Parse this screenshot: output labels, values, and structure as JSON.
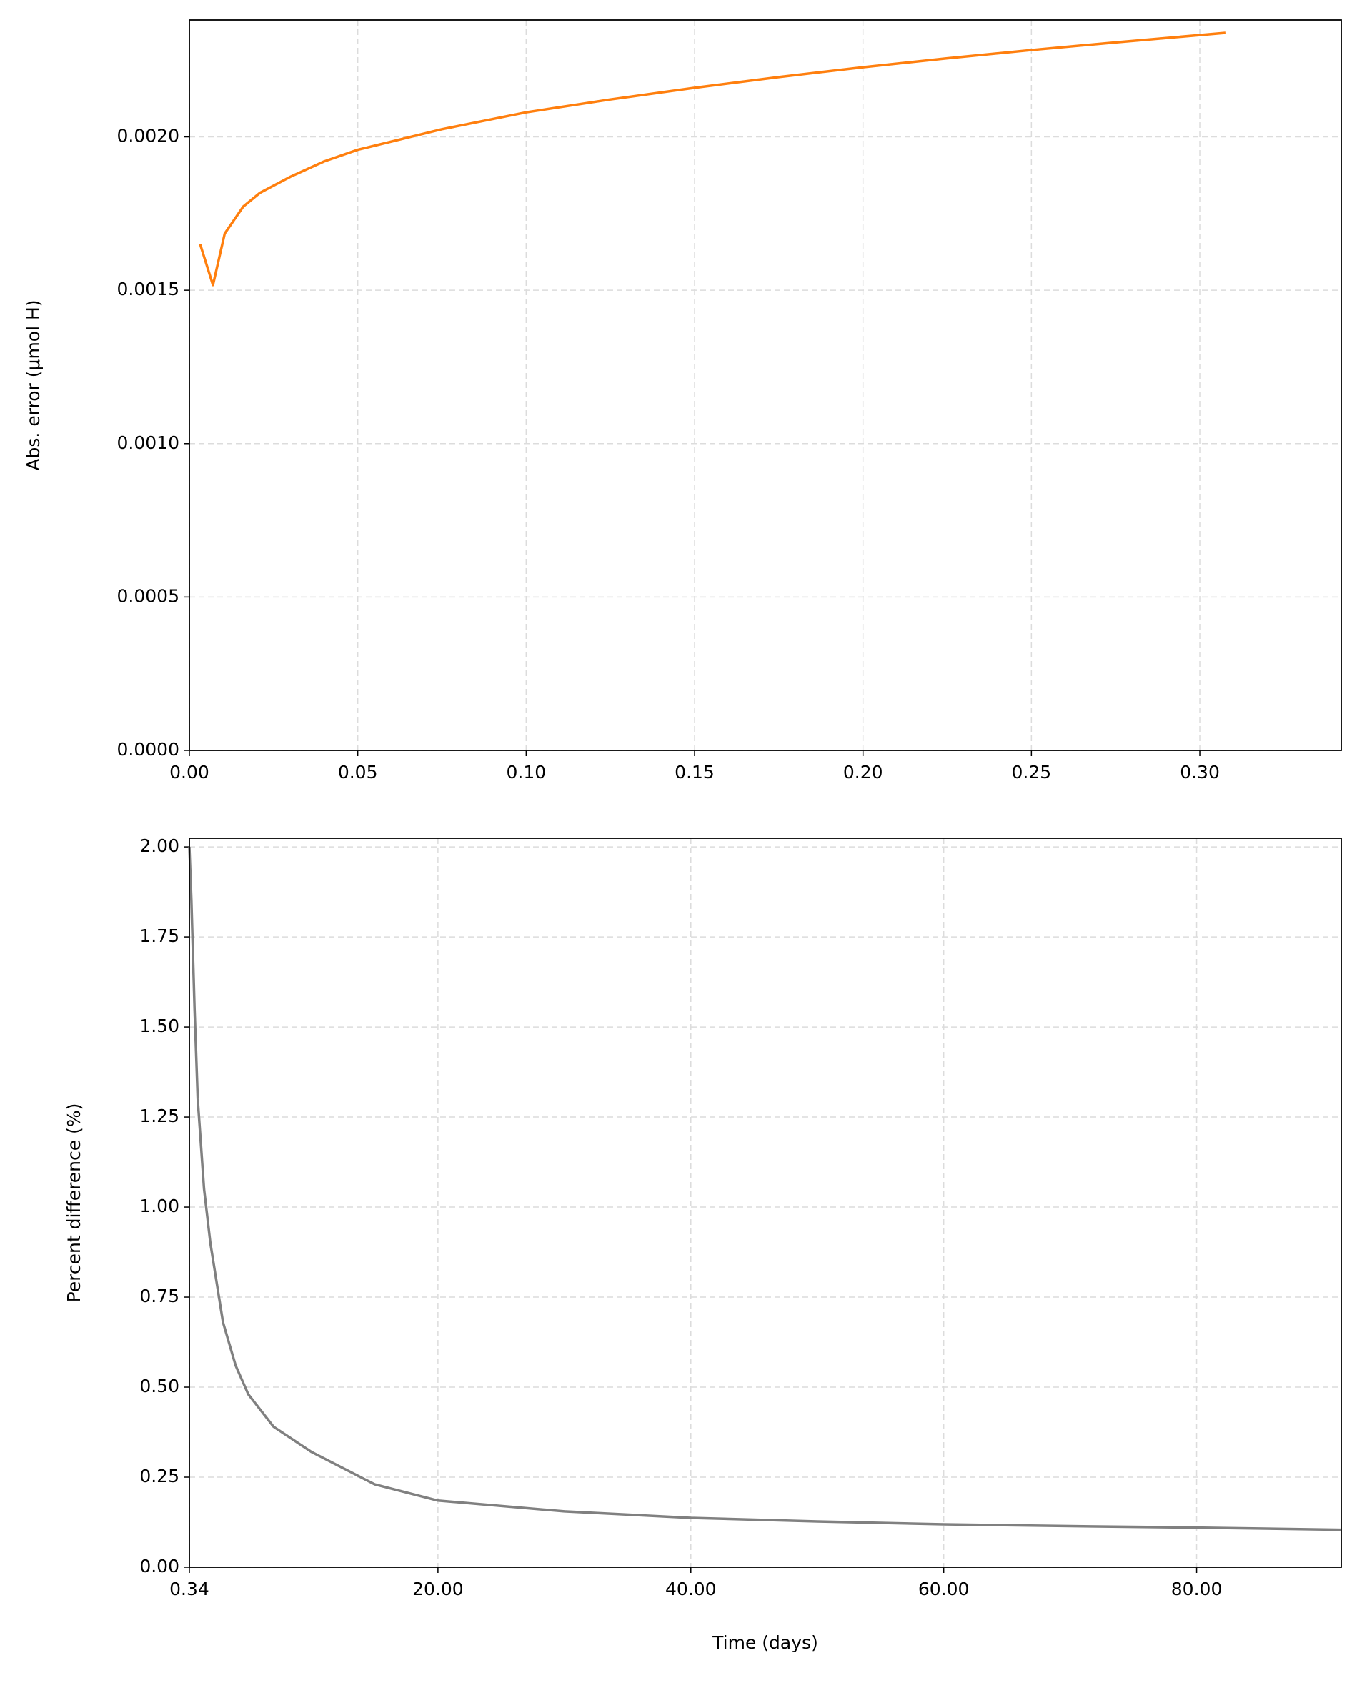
{
  "chart_data": [
    {
      "type": "line",
      "ylabel": "Abs. error (μmol H)",
      "color": "#ff7f0e",
      "grid": true,
      "x": [
        0.0032,
        0.007,
        0.0105,
        0.016,
        0.021,
        0.03,
        0.04,
        0.05,
        0.075,
        0.1,
        0.125,
        0.15,
        0.175,
        0.2,
        0.225,
        0.25,
        0.275,
        0.3076
      ],
      "values": [
        0.00165,
        0.001517,
        0.001685,
        0.001773,
        0.001818,
        0.00187,
        0.00192,
        0.001958,
        0.002025,
        0.00208,
        0.002122,
        0.00216,
        0.002195,
        0.002227,
        0.002256,
        0.002283,
        0.002308,
        0.002339
      ],
      "xlim": [
        0,
        0.342
      ],
      "ylim": [
        0,
        0.002381
      ],
      "xticks": [
        {
          "value": 0,
          "label": "0.00"
        },
        0.05,
        {
          "value": 0.1,
          "label": "0.10"
        },
        0.15,
        {
          "value": 0.2,
          "label": "0.20"
        },
        0.25,
        {
          "value": 0.3,
          "label": "0.30"
        }
      ],
      "yticks": [
        {
          "value": 0,
          "label": "0.0000"
        },
        {
          "value": 0.0005,
          "label": "0.0005"
        },
        {
          "value": 0.001,
          "label": "0.0010"
        },
        {
          "value": 0.0015,
          "label": "0.0015"
        },
        {
          "value": 0.002,
          "label": "0.0020"
        }
      ]
    },
    {
      "type": "line",
      "ylabel": "Percent difference (%)",
      "xlabel": "Time (days)",
      "color": "#808080",
      "grid": true,
      "x": [
        0.34,
        0.5,
        0.75,
        1,
        1.5,
        2,
        3,
        4,
        5,
        7,
        10,
        15,
        20,
        30,
        40,
        50,
        60,
        70,
        80,
        91.44
      ],
      "values": [
        2.0,
        1.85,
        1.55,
        1.3,
        1.05,
        0.9,
        0.68,
        0.56,
        0.48,
        0.39,
        0.32,
        0.23,
        0.185,
        0.155,
        0.137,
        0.127,
        0.119,
        0.114,
        0.11,
        0.104
      ],
      "xlim": [
        0.34,
        91.44
      ],
      "ylim": [
        0,
        2.024
      ],
      "xticks": [
        0.34,
        {
          "value": 20,
          "label": "20.00"
        },
        {
          "value": 40,
          "label": "40.00"
        },
        {
          "value": 60,
          "label": "60.00"
        },
        {
          "value": 80,
          "label": "80.00"
        }
      ],
      "yticks": [
        {
          "value": 0,
          "label": "0.00"
        },
        0.25,
        {
          "value": 0.5,
          "label": "0.50"
        },
        0.75,
        {
          "value": 1,
          "label": "1.00"
        },
        1.25,
        {
          "value": 1.5,
          "label": "1.50"
        },
        1.75,
        {
          "value": 2,
          "label": "2.00"
        }
      ]
    }
  ]
}
